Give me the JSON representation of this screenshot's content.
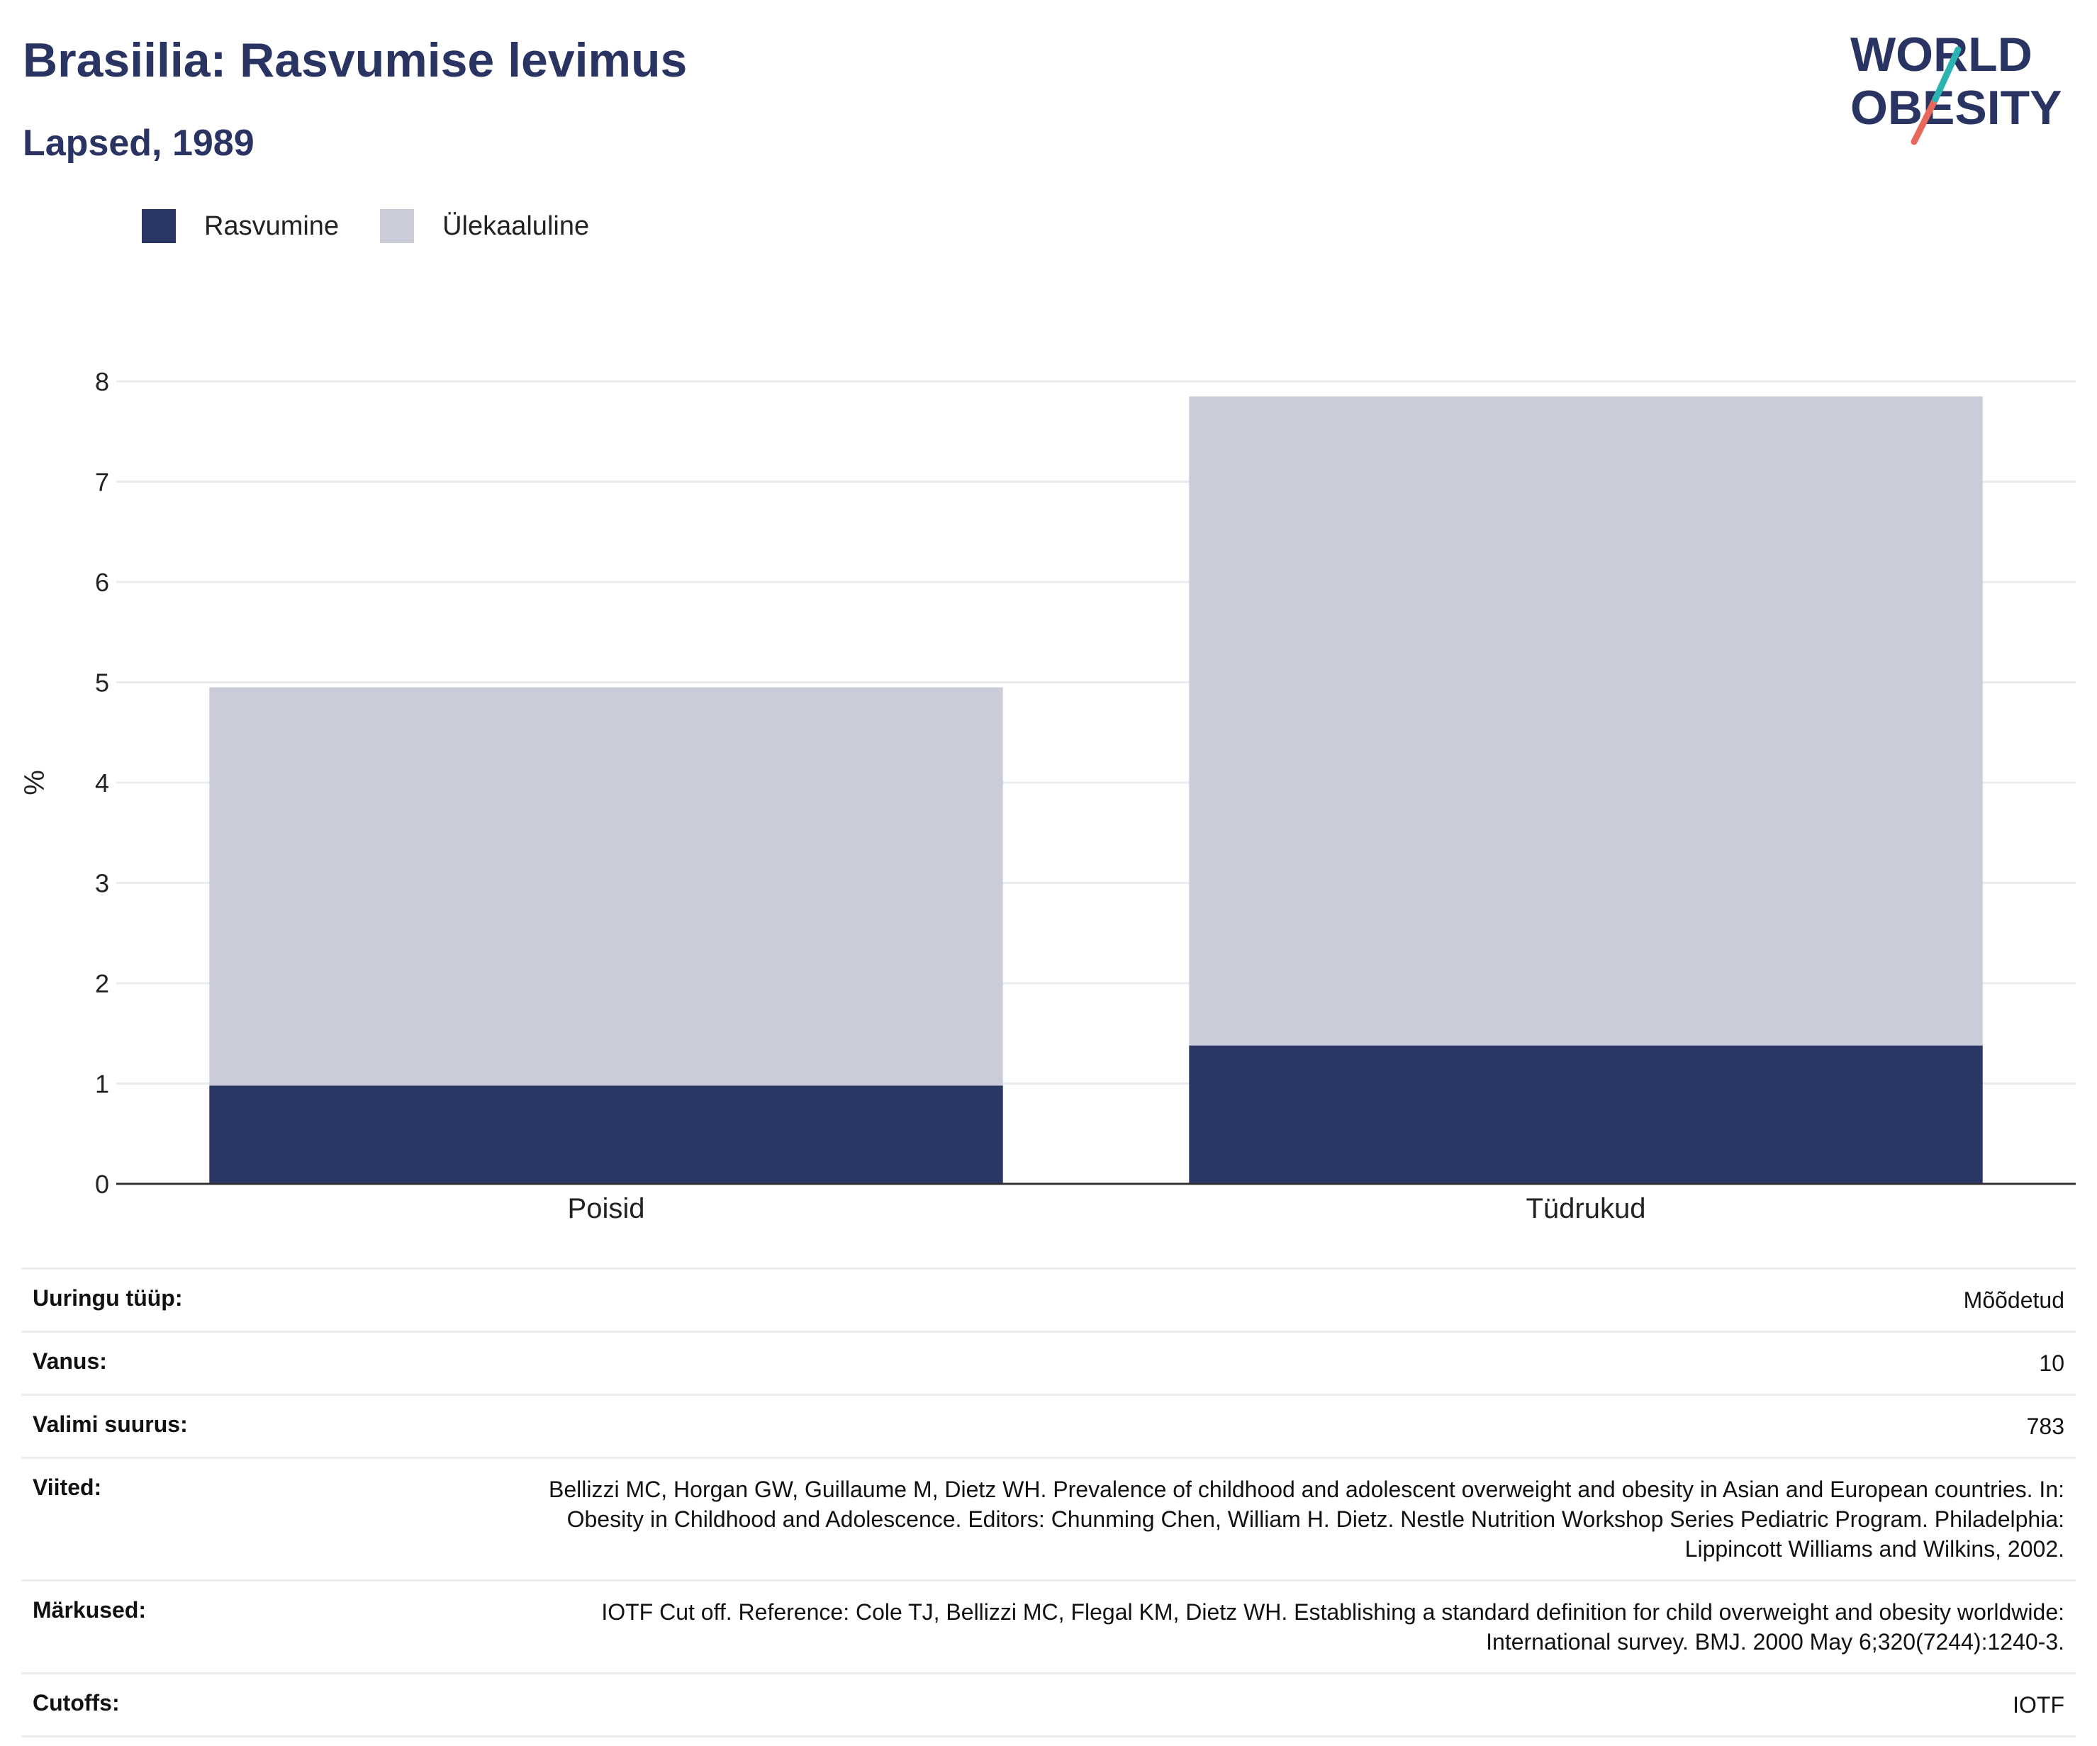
{
  "header": {
    "title": "Brasiilia: Rasvumise levimus",
    "subtitle": "Lapsed, 1989"
  },
  "logo": {
    "line1": "WORLD",
    "line2": "OBESITY"
  },
  "colors": {
    "obesity": "#2a3765",
    "overweight": "#cacdd9",
    "accent_teal": "#2bb3b1",
    "accent_red": "#e8685b",
    "title": "#2a3462"
  },
  "chart_data": {
    "type": "bar",
    "stacked": true,
    "categories": [
      "Poisid",
      "Tüdrukud"
    ],
    "series": [
      {
        "name": "Rasvumine",
        "values": [
          0.98,
          1.38
        ]
      },
      {
        "name": "Ülekaaluline",
        "values": [
          3.97,
          6.47
        ]
      }
    ],
    "ylabel": "%",
    "ylim": [
      0,
      8
    ],
    "yticks": [
      "0",
      "1",
      "2",
      "3",
      "4",
      "5",
      "6",
      "7",
      "8"
    ],
    "grid": true,
    "legend_position": "top-left"
  },
  "info_table": [
    {
      "key": "Uuringu tüüp:",
      "value": "Mõõdetud"
    },
    {
      "key": "Vanus:",
      "value": "10"
    },
    {
      "key": "Valimi suurus:",
      "value": "783"
    },
    {
      "key": "Viited:",
      "value": "Bellizzi MC, Horgan GW, Guillaume M, Dietz WH. Prevalence of childhood and adolescent overweight and obesity in Asian and European countries. In: Obesity in Childhood and Adolescence. Editors: Chunming Chen, William H. Dietz. Nestle Nutrition Workshop Series Pediatric Program. Philadelphia: Lippincott Williams and Wilkins, 2002."
    },
    {
      "key": "Märkused:",
      "value": "IOTF Cut off. Reference: Cole TJ, Bellizzi MC, Flegal KM, Dietz WH. Establishing a standard definition for child overweight and obesity worldwide: International survey. BMJ. 2000 May 6;320(7244):1240-3."
    },
    {
      "key": "Cutoffs:",
      "value": "IOTF"
    }
  ]
}
